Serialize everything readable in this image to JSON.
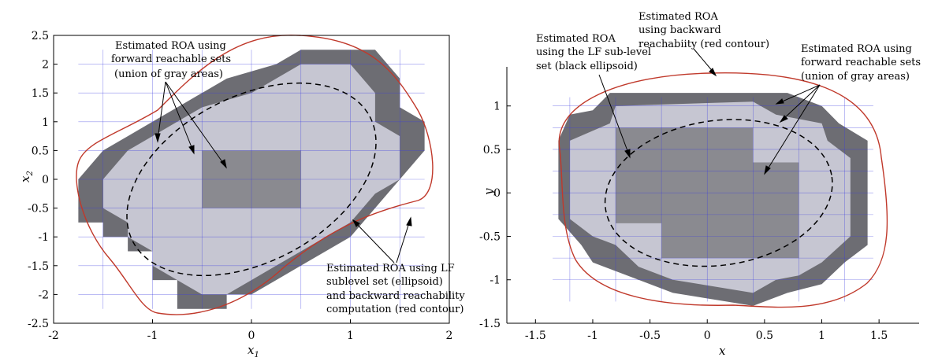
{
  "colors": {
    "dark_cell": "#6d6d73",
    "mid_cell": "#8a8a90",
    "light_cell": "#c6c6d2",
    "grid_line": "#3a3ae0",
    "red_contour": "#c0392b",
    "ellipse": "#000000"
  },
  "chart_data": [
    {
      "type": "heatmap",
      "xlabel": "x",
      "xlabel_sub": "1",
      "ylabel": "x",
      "ylabel_sub": "2",
      "xlim": [
        -2,
        2
      ],
      "ylim": [
        -2.5,
        2.5
      ],
      "xticks": [
        -2,
        -1,
        0,
        1,
        2
      ],
      "yticks": [
        -2.5,
        -2,
        -1.5,
        -1,
        -0.5,
        0,
        0.5,
        1,
        1.5,
        2,
        2.5
      ],
      "xtick_labels": [
        "-2",
        "-1",
        "0",
        "1",
        "2"
      ],
      "ytick_labels": [
        "-2.5",
        "-2",
        "-1.5",
        "-1",
        "-0.5",
        "0",
        "0.5",
        "1",
        "1.5",
        "2",
        "2.5"
      ],
      "cell_size": 0.125,
      "regions": {
        "dark": [
          [
            [
              -1.75,
              -0.75
            ],
            [
              -1.5,
              -0.75
            ],
            [
              -1.5,
              -1
            ],
            [
              -1.25,
              -1
            ],
            [
              -1.25,
              -1.25
            ],
            [
              -1,
              -1.25
            ],
            [
              -1,
              -1.75
            ],
            [
              -0.75,
              -1.75
            ],
            [
              -0.75,
              -2.25
            ],
            [
              -0.25,
              -2.25
            ],
            [
              -0.25,
              -2.0
            ],
            [
              0,
              -2.0
            ],
            [
              0.25,
              -1.75
            ],
            [
              0.5,
              -1.5
            ],
            [
              0.75,
              -1.25
            ],
            [
              1,
              -1
            ],
            [
              1.25,
              -0.5
            ],
            [
              1.5,
              0
            ],
            [
              1.75,
              0.5
            ],
            [
              1.75,
              1
            ],
            [
              1.5,
              1.25
            ],
            [
              1.5,
              1.75
            ],
            [
              1.25,
              2.25
            ],
            [
              1,
              2.25
            ],
            [
              0.75,
              2.25
            ],
            [
              0.5,
              2.25
            ],
            [
              0.25,
              2.0
            ],
            [
              -0.25,
              1.75
            ],
            [
              -0.5,
              1.5
            ],
            [
              -0.75,
              1.25
            ],
            [
              -1,
              1
            ],
            [
              -1.25,
              0.75
            ],
            [
              -1.5,
              0.5
            ],
            [
              -1.75,
              0
            ]
          ]
        ],
        "light": [
          [
            [
              -1.5,
              -0.5
            ],
            [
              -1.25,
              -0.75
            ],
            [
              -1.25,
              -1
            ],
            [
              -1,
              -1.25
            ],
            [
              -1,
              -1.5
            ],
            [
              -0.75,
              -1.75
            ],
            [
              -0.5,
              -2.0
            ],
            [
              -0.25,
              -2.0
            ],
            [
              0,
              -1.75
            ],
            [
              0.25,
              -1.5
            ],
            [
              0.5,
              -1.25
            ],
            [
              0.75,
              -1
            ],
            [
              1,
              -0.75
            ],
            [
              1.25,
              -0.25
            ],
            [
              1.5,
              0
            ],
            [
              1.5,
              0.75
            ],
            [
              1.25,
              1
            ],
            [
              1.25,
              1.5
            ],
            [
              1,
              2
            ],
            [
              0.5,
              2
            ],
            [
              0.25,
              1.75
            ],
            [
              0,
              1.5
            ],
            [
              -0.5,
              1.25
            ],
            [
              -0.75,
              1
            ],
            [
              -1,
              0.75
            ],
            [
              -1.25,
              0.5
            ],
            [
              -1.5,
              0
            ]
          ]
        ],
        "mid": [
          [
            [
              -0.5,
              -0.5
            ],
            [
              0.5,
              -0.5
            ],
            [
              0.5,
              0.5
            ],
            [
              -0.5,
              0.5
            ]
          ]
        ]
      },
      "ellipse": {
        "cx": 0,
        "cy": 0,
        "rx": 1.35,
        "ry": 1.6,
        "angle_deg": 28
      },
      "red_contour_desc": "outer boundary enclosing all cells",
      "annotations": [
        {
          "lines": [
            "Estimated ROA using",
            "forward reachable sets",
            "(union of gray areas)"
          ]
        },
        {
          "lines": [
            "Estimated ROA using LF",
            "sublevel set (ellipsoid)",
            "and backward reachability",
            "computation (red contour)"
          ]
        }
      ]
    },
    {
      "type": "heatmap",
      "xlabel": "x",
      "ylabel": "y",
      "xlim": [
        -1.5,
        1.5
      ],
      "ylim": [
        -1.5,
        1.5
      ],
      "xticks": [
        -1.5,
        -1,
        -0.5,
        0,
        0.5,
        1,
        1.5
      ],
      "yticks": [
        -1.5,
        -1,
        -0.5,
        0,
        0.5,
        1
      ],
      "xtick_labels": [
        "-1.5",
        "-1",
        "-0.5",
        "0",
        "0.5",
        "1",
        "1.5"
      ],
      "ytick_labels": [
        "-1.5",
        "-1",
        "-0.5",
        "0",
        "0.5",
        "1"
      ],
      "annotations": [
        {
          "lines": [
            "Estimated ROA",
            "using the LF sub-level",
            "set (black ellipsoid)"
          ]
        },
        {
          "lines": [
            "Estimated ROA",
            "using backward",
            "reachabiity (red contour)"
          ]
        },
        {
          "lines": [
            "Estimated ROA using",
            "forward reachable sets",
            "(union of gray areas)"
          ]
        }
      ]
    }
  ]
}
